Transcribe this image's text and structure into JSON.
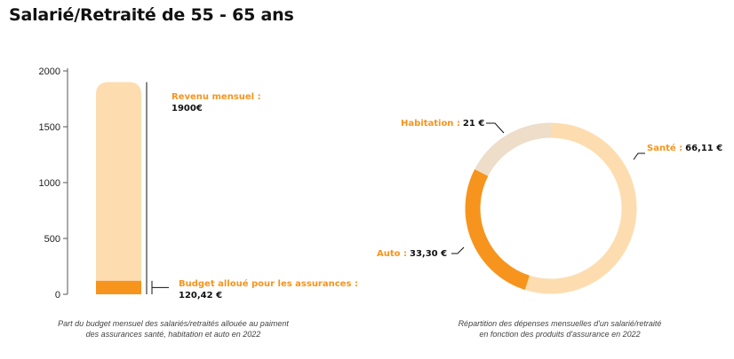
{
  "title": "Salarié/Retraité  de 55 - 65 ans",
  "colors": {
    "light": "#FDDDAF",
    "orange": "#F7941D",
    "beige": "#EDDDC9",
    "text": "#111111"
  },
  "chart_data": [
    {
      "type": "bar",
      "yticks": [
        "2000",
        "1500",
        "1000",
        "500",
        "0"
      ],
      "ylim": [
        0,
        2000
      ],
      "series": [
        {
          "value": 1900,
          "label": "Revenu mensuel :",
          "value_label": "1900€"
        },
        {
          "value": 120.42,
          "label": "Budget alloué pour les assurances :",
          "value_label": "120,42 €"
        }
      ],
      "caption_lines": [
        "Part du budget mensuel des salariés/retraités allouée au paiment",
        "des assurances santé, habitation et auto en 2022"
      ]
    },
    {
      "type": "pie",
      "slices": [
        {
          "label": "Santé :",
          "value": 66.11,
          "value_label": "66,11 €"
        },
        {
          "label": "Auto :",
          "value": 33.3,
          "value_label": "33,30 €"
        },
        {
          "label": "Habitation :",
          "value": 21,
          "value_label": "21 €"
        }
      ],
      "caption_lines": [
        "Répartition des dépenses mensuelles d'un salarié/retraité",
        "en fonction des produits d'assurance en 2022"
      ]
    }
  ]
}
